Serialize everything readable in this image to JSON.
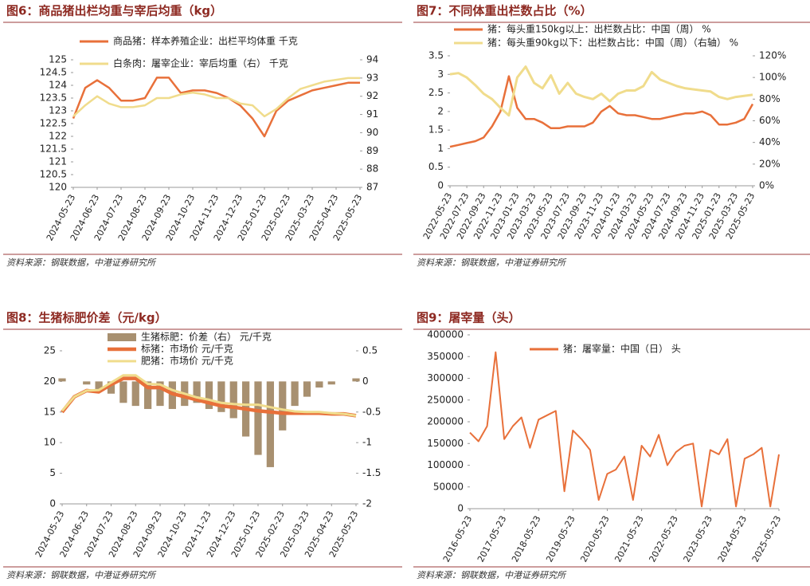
{
  "chart_data": [
    {
      "type": "line",
      "title": "图6：商品猪出栏均重与宰后均重（kg）",
      "source": "资料来源：钢联数据，中港证券研究所",
      "categories": [
        "2024-05-23",
        null,
        "2024-06-23",
        null,
        "2024-07-23",
        null,
        "2024-08-23",
        null,
        "2024-09-23",
        null,
        "2024-10-23",
        null,
        "2024-11-23",
        null,
        "2024-12-23",
        null,
        "2025-01-23",
        null,
        "2025-02-23",
        null,
        "2025-03-23",
        null,
        "2025-04-23",
        null,
        "2025-05-23"
      ],
      "ylim": [
        120,
        125
      ],
      "yticks": [
        120,
        120.5,
        121,
        121.5,
        122,
        122.5,
        123,
        123.5,
        124,
        124.5,
        125
      ],
      "y2lim": [
        87,
        94
      ],
      "y2ticks": [
        87,
        88,
        89,
        90,
        91,
        92,
        93,
        94
      ],
      "series": [
        {
          "name": "商品猪：样本养殖企业：出栏平均体重 千克",
          "color": "#e8703a",
          "values": [
            122.7,
            123.9,
            124.2,
            123.9,
            123.4,
            123.4,
            123.5,
            124.3,
            124.3,
            123.7,
            123.8,
            123.8,
            123.7,
            123.5,
            123.2,
            122.7,
            122.0,
            123.0,
            123.4,
            123.6,
            123.8,
            123.9,
            124.0,
            124.1,
            124.1
          ]
        },
        {
          "name": "白条肉：屠宰企业：宰后均重（右） 千克",
          "color": "#f0dc8c",
          "axis": "y2",
          "values": [
            90.9,
            91.5,
            92.0,
            91.6,
            91.4,
            91.4,
            91.5,
            91.9,
            91.9,
            92.1,
            92.2,
            92.1,
            91.9,
            91.9,
            91.6,
            91.5,
            90.9,
            91.3,
            91.9,
            92.4,
            92.6,
            92.8,
            92.9,
            93.0,
            93.0
          ]
        }
      ]
    },
    {
      "type": "line",
      "title": "图7：不同体重出栏数占比（%）",
      "source": "资料来源：钢联数据，中港证券研究所",
      "categories": [
        "2022-05-23",
        null,
        "2022-07-23",
        null,
        "2022-09-23",
        null,
        "2022-11-23",
        null,
        "2023-01-23",
        null,
        "2023-03-23",
        null,
        "2023-05-23",
        null,
        "2023-07-23",
        null,
        "2023-09-23",
        null,
        "2023-11-23",
        null,
        "2024-01-23",
        null,
        "2024-03-23",
        null,
        "2024-05-23",
        null,
        "2024-07-23",
        null,
        "2024-09-23",
        null,
        "2024-11-23",
        null,
        "2025-01-23",
        null,
        "2025-03-23",
        null,
        "2025-05-23"
      ],
      "ylim": [
        0,
        3.5
      ],
      "yticks": [
        0,
        0.5,
        1,
        1.5,
        2,
        2.5,
        3,
        3.5
      ],
      "y2lim": [
        0,
        120
      ],
      "y2ticks": [
        {
          "value": 0,
          "label": "0%"
        },
        {
          "value": 20,
          "label": "20%"
        },
        {
          "value": 40,
          "label": "40%"
        },
        {
          "value": 60,
          "label": "60%"
        },
        {
          "value": 80,
          "label": "80%"
        },
        {
          "value": 100,
          "label": "100%"
        },
        {
          "value": 120,
          "label": "120%"
        }
      ],
      "series": [
        {
          "name": "猪：每头重150kg以上：出栏数占比：中国（周） %",
          "color": "#e8703a",
          "values": [
            1.05,
            1.1,
            1.15,
            1.2,
            1.3,
            1.6,
            2.0,
            2.95,
            2.1,
            1.8,
            1.8,
            1.7,
            1.55,
            1.55,
            1.6,
            1.6,
            1.6,
            1.7,
            2.0,
            2.15,
            1.95,
            1.9,
            1.9,
            1.85,
            1.8,
            1.8,
            1.85,
            1.9,
            1.95,
            1.95,
            2.0,
            1.9,
            1.65,
            1.65,
            1.7,
            1.8,
            2.2
          ]
        },
        {
          "name": "猪：每头重90kg以下：出栏数占比：中国（周）（右轴） %",
          "color": "#f0dc8c",
          "axis": "y2",
          "values": [
            103,
            104,
            100,
            93,
            85,
            80,
            72,
            65,
            100,
            110,
            95,
            90,
            102,
            85,
            95,
            85,
            82,
            80,
            85,
            78,
            85,
            88,
            88,
            92,
            105,
            98,
            95,
            92,
            90,
            89,
            88,
            87,
            82,
            80,
            82,
            83,
            84
          ]
        }
      ]
    },
    {
      "type": "combo",
      "title": "图8：生猪标肥价差（元/kg）",
      "source": "资料来源：钢联数据，中港证券研究所",
      "categories": [
        "2024-05-23",
        null,
        "2024-06-23",
        null,
        "2024-07-23",
        null,
        "2024-08-23",
        null,
        "2024-09-23",
        null,
        "2024-10-23",
        null,
        "2024-11-23",
        null,
        "2024-12-23",
        null,
        "2025-01-23",
        null,
        "2025-02-23",
        null,
        "2025-03-23",
        null,
        "2025-04-23",
        null,
        "2025-05-23"
      ],
      "ylim": [
        0,
        25
      ],
      "yticks": [
        0,
        5,
        10,
        15,
        20,
        25
      ],
      "y2lim": [
        -2,
        0.5
      ],
      "y2ticks": [
        -2,
        -1.5,
        -1,
        -0.5,
        0,
        0.5
      ],
      "series": [
        {
          "name": "生猪标肥：价差（右） 元/千克",
          "type": "bar",
          "color": "#a89070",
          "axis": "y2",
          "values": [
            0.05,
            0,
            -0.05,
            -0.15,
            -0.2,
            -0.35,
            -0.4,
            -0.45,
            -0.4,
            -0.45,
            -0.4,
            -0.35,
            -0.45,
            -0.5,
            -0.6,
            -0.9,
            -1.2,
            -1.4,
            -0.8,
            -0.4,
            -0.25,
            -0.1,
            -0.05,
            0,
            0.05
          ]
        },
        {
          "name": "标猪：市场价 元/千克",
          "type": "line",
          "color": "#e8703a",
          "values": [
            15,
            17.5,
            18.5,
            18.3,
            19.5,
            20.5,
            20.5,
            19,
            19,
            18,
            17.5,
            17,
            16.5,
            16,
            15.8,
            15.5,
            15.2,
            15,
            14.8,
            14.8,
            14.8,
            14.8,
            14.7,
            14.7,
            14.4
          ]
        },
        {
          "name": "肥猪：市场价 元/千克",
          "type": "line",
          "color": "#f0dc8c",
          "values": [
            15.2,
            17.5,
            18.5,
            18.6,
            19.8,
            21,
            21,
            19.6,
            19.5,
            18.6,
            18,
            17.4,
            17,
            16.5,
            16.3,
            16.2,
            16.2,
            15.8,
            15.4,
            15.1,
            15,
            15,
            14.8,
            14.7,
            14.4
          ]
        }
      ]
    },
    {
      "type": "line",
      "title": "图9：屠宰量（头）",
      "source": "资料来源：钢联数据，中港证券研究所",
      "categories": [
        "2016-05-23",
        null,
        null,
        null,
        "2017-05-23",
        null,
        null,
        null,
        "2018-05-23",
        null,
        null,
        null,
        "2019-05-23",
        null,
        null,
        null,
        "2020-05-23",
        null,
        null,
        null,
        "2021-05-23",
        null,
        null,
        null,
        "2022-05-23",
        null,
        null,
        null,
        "2023-05-23",
        null,
        null,
        null,
        "2024-05-23",
        null,
        null,
        null,
        "2025-05-23"
      ],
      "ylim": [
        0,
        400000
      ],
      "yticks": [
        0,
        50000,
        100000,
        150000,
        200000,
        250000,
        300000,
        350000,
        400000
      ],
      "series": [
        {
          "name": "猪：屠宰量：中国（日） 头",
          "color": "#e8703a",
          "values": [
            175000,
            155000,
            190000,
            360000,
            160000,
            190000,
            210000,
            140000,
            205000,
            215000,
            225000,
            40000,
            180000,
            160000,
            135000,
            20000,
            80000,
            90000,
            120000,
            20000,
            145000,
            120000,
            170000,
            100000,
            130000,
            145000,
            150000,
            5000,
            135000,
            125000,
            160000,
            5000,
            115000,
            125000,
            140000,
            5000,
            125000
          ]
        }
      ]
    }
  ]
}
